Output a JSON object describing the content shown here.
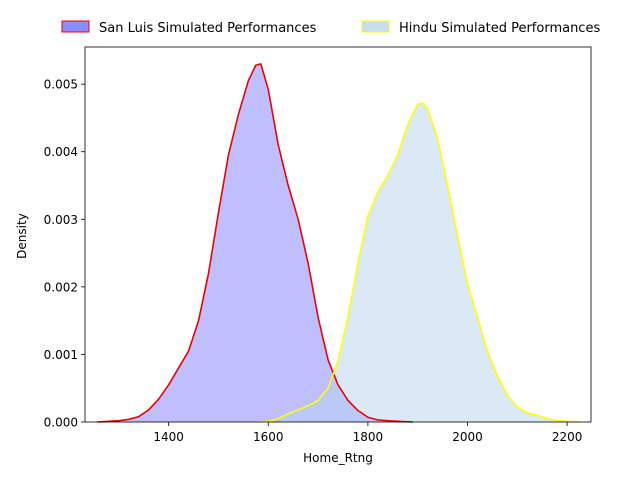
{
  "chart_data": {
    "type": "area",
    "title": "",
    "xlabel": "Home_Rtng",
    "ylabel": "Density",
    "xlim": [
      1232,
      2248
    ],
    "ylim": [
      0,
      0.00555
    ],
    "x_ticks": [
      1400,
      1600,
      1800,
      2000,
      2200
    ],
    "x_tick_labels": [
      "1400",
      "1600",
      "1800",
      "2000",
      "2200"
    ],
    "y_ticks": [
      0,
      0.001,
      0.002,
      0.003,
      0.004,
      0.005
    ],
    "y_tick_labels": [
      "0.000",
      "0.001",
      "0.002",
      "0.003",
      "0.004",
      "0.005"
    ],
    "grid": false,
    "legend_position": "top",
    "series": [
      {
        "name": "San Luis Simulated Performances",
        "line_color": "#ee0000",
        "fill_color": "#8080ff",
        "fill_opacity": 0.5,
        "points": [
          [
            1257,
            0.0
          ],
          [
            1280,
            1e-05
          ],
          [
            1300,
            2e-05
          ],
          [
            1320,
            4e-05
          ],
          [
            1340,
            8e-05
          ],
          [
            1360,
            0.00018
          ],
          [
            1380,
            0.00034
          ],
          [
            1400,
            0.00055
          ],
          [
            1420,
            0.0008
          ],
          [
            1440,
            0.00105
          ],
          [
            1460,
            0.0015
          ],
          [
            1480,
            0.0022
          ],
          [
            1500,
            0.0031
          ],
          [
            1520,
            0.00395
          ],
          [
            1540,
            0.00455
          ],
          [
            1560,
            0.00505
          ],
          [
            1575,
            0.00528
          ],
          [
            1585,
            0.0053
          ],
          [
            1600,
            0.00492
          ],
          [
            1620,
            0.0041
          ],
          [
            1640,
            0.0035
          ],
          [
            1660,
            0.003
          ],
          [
            1680,
            0.00235
          ],
          [
            1700,
            0.00155
          ],
          [
            1720,
            0.00092
          ],
          [
            1740,
            0.00055
          ],
          [
            1760,
            0.00032
          ],
          [
            1780,
            0.00017
          ],
          [
            1800,
            7e-05
          ],
          [
            1820,
            3e-05
          ],
          [
            1840,
            2e-05
          ],
          [
            1860,
            1e-05
          ],
          [
            1890,
            0.0
          ]
        ]
      },
      {
        "name": "Hindu Simulated Performances",
        "line_color": "#ffff00",
        "fill_color": "#b8d4f0",
        "fill_opacity": 0.5,
        "points": [
          [
            1575,
            0.0
          ],
          [
            1600,
            1e-05
          ],
          [
            1620,
            5e-05
          ],
          [
            1640,
            0.00012
          ],
          [
            1660,
            0.00018
          ],
          [
            1680,
            0.00024
          ],
          [
            1700,
            0.00032
          ],
          [
            1720,
            0.0005
          ],
          [
            1740,
            0.0009
          ],
          [
            1760,
            0.00155
          ],
          [
            1780,
            0.00235
          ],
          [
            1800,
            0.00305
          ],
          [
            1820,
            0.0034
          ],
          [
            1840,
            0.00365
          ],
          [
            1860,
            0.00395
          ],
          [
            1880,
            0.0044
          ],
          [
            1900,
            0.0047
          ],
          [
            1910,
            0.00472
          ],
          [
            1920,
            0.00463
          ],
          [
            1940,
            0.0042
          ],
          [
            1960,
            0.0035
          ],
          [
            1980,
            0.00275
          ],
          [
            2000,
            0.00205
          ],
          [
            2020,
            0.00155
          ],
          [
            2040,
            0.00105
          ],
          [
            2060,
            0.00068
          ],
          [
            2080,
            0.0004
          ],
          [
            2100,
            0.00022
          ],
          [
            2120,
            0.00013
          ],
          [
            2140,
            0.0001
          ],
          [
            2160,
            5e-05
          ],
          [
            2180,
            2e-05
          ],
          [
            2200,
            1e-05
          ],
          [
            2225,
            0.0
          ]
        ]
      }
    ]
  }
}
